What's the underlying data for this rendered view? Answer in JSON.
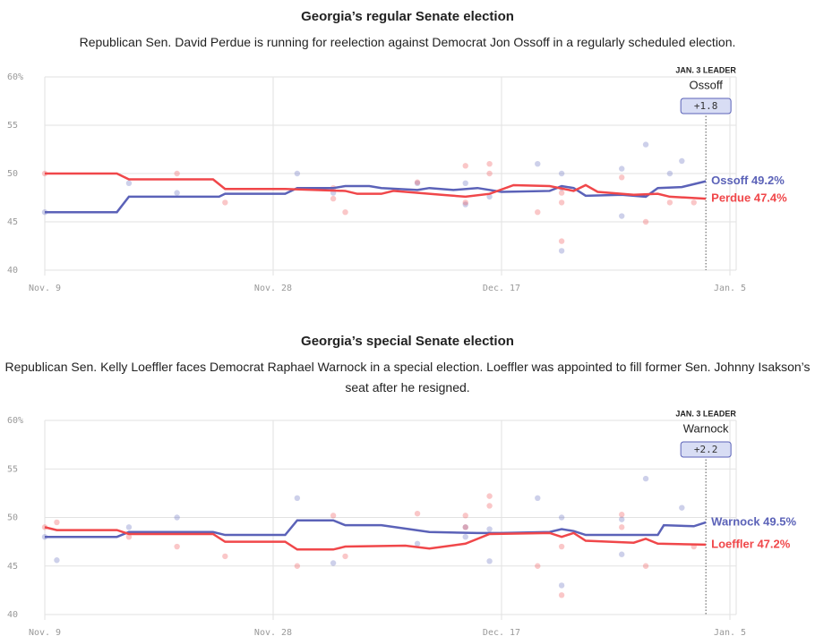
{
  "chart_data": [
    {
      "type": "line",
      "title": "Georgia’s regular Senate election",
      "subtitle": "Republican Sen. David Perdue is running for reelection against Democrat Jon Ossoff in a regularly scheduled election.",
      "xlim": [
        0,
        57
      ],
      "ylim": [
        40,
        60
      ],
      "xticks": [
        {
          "value": 0,
          "label": "Nov. 9"
        },
        {
          "value": 19,
          "label": "Nov. 28"
        },
        {
          "value": 38,
          "label": "Dec. 17"
        },
        {
          "value": 57,
          "label": "Jan. 5"
        }
      ],
      "yticks": [
        40,
        45,
        50,
        55,
        {
          "value": 60,
          "label": "60%"
        }
      ],
      "grid": true,
      "leader": {
        "title": "JAN. 3 LEADER",
        "name": "Ossoff",
        "margin": "+1.8",
        "x": 55
      },
      "series": [
        {
          "label": "Ossoff 49.2%",
          "color": "#5b62b8",
          "x": [
            0,
            6,
            7,
            14.5,
            15,
            20,
            21,
            24,
            25,
            27,
            28,
            31,
            32,
            34,
            36,
            38,
            42,
            43,
            44,
            45,
            48,
            50,
            51,
            53,
            55
          ],
          "values": [
            46,
            46,
            47.6,
            47.6,
            47.9,
            47.9,
            48.5,
            48.5,
            48.7,
            48.7,
            48.5,
            48.3,
            48.5,
            48.3,
            48.5,
            48.1,
            48.2,
            48.7,
            48.5,
            47.7,
            47.8,
            47.6,
            48.5,
            48.6,
            49.2
          ],
          "polls": {
            "x": [
              0,
              7,
              11,
              21,
              24,
              31,
              35,
              35,
              37,
              41,
              43,
              43,
              43,
              48,
              48,
              50,
              52,
              53
            ],
            "values": [
              46,
              49,
              48,
              50,
              48,
              49,
              46.8,
              49,
              47.6,
              51,
              50,
              42,
              48.5,
              50.5,
              45.6,
              53,
              50,
              51.3
            ]
          }
        },
        {
          "label": "Perdue 47.4%",
          "color": "#f0474a",
          "x": [
            0,
            6,
            7,
            14,
            15,
            20,
            25,
            26,
            28,
            29,
            33,
            35,
            37,
            39,
            42,
            44,
            45,
            46,
            49,
            51,
            52,
            55
          ],
          "values": [
            50,
            50,
            49.4,
            49.4,
            48.4,
            48.4,
            48.2,
            47.9,
            47.9,
            48.2,
            47.8,
            47.6,
            47.9,
            48.8,
            48.7,
            48.2,
            48.8,
            48.1,
            47.8,
            47.9,
            47.6,
            47.4
          ],
          "polls": {
            "x": [
              0,
              11,
              15,
              24,
              24,
              25,
              31,
              35,
              35,
              37,
              37,
              41,
              43,
              43,
              43,
              48,
              50,
              52,
              54
            ],
            "values": [
              50,
              50,
              47,
              48.5,
              47.4,
              46,
              49.1,
              50.8,
              47,
              51,
              50,
              46,
              43,
              47,
              48,
              49.6,
              45,
              47,
              47
            ]
          }
        }
      ]
    },
    {
      "type": "line",
      "title": "Georgia’s special Senate election",
      "subtitle": "Republican Sen. Kelly Loeffler faces Democrat Raphael Warnock in a special election. Loeffler was appointed to fill former Sen. Johnny Isakson’s seat after he resigned.",
      "xlim": [
        0,
        57
      ],
      "ylim": [
        40,
        60
      ],
      "xticks": [
        {
          "value": 0,
          "label": "Nov. 9"
        },
        {
          "value": 19,
          "label": "Nov. 28"
        },
        {
          "value": 38,
          "label": "Dec. 17"
        },
        {
          "value": 57,
          "label": "Jan. 5"
        }
      ],
      "yticks": [
        40,
        45,
        50,
        55,
        {
          "value": 60,
          "label": "60%"
        }
      ],
      "grid": true,
      "leader": {
        "title": "JAN. 3 LEADER",
        "name": "Warnock",
        "margin": "+2.2",
        "x": 55
      },
      "series": [
        {
          "label": "Warnock 49.5%",
          "color": "#5b62b8",
          "x": [
            0,
            6,
            7,
            14,
            15,
            20,
            21,
            24,
            25,
            28,
            32,
            36,
            38,
            42,
            43,
            44,
            45,
            50,
            51,
            51.5,
            54,
            55
          ],
          "values": [
            48,
            48,
            48.5,
            48.5,
            48.2,
            48.2,
            49.7,
            49.7,
            49.2,
            49.2,
            48.5,
            48.4,
            48.4,
            48.5,
            48.8,
            48.6,
            48.2,
            48.2,
            48.2,
            49.2,
            49.1,
            49.5
          ],
          "polls": {
            "x": [
              0,
              1,
              7,
              11,
              21,
              24,
              31,
              35,
              35,
              37,
              37,
              41,
              43,
              43,
              48,
              48,
              50,
              53
            ],
            "values": [
              48,
              45.6,
              49,
              50,
              52,
              45.3,
              47.3,
              49,
              48,
              45.5,
              48.8,
              52,
              50,
              43,
              49.8,
              46.2,
              54,
              51
            ]
          }
        },
        {
          "label": "Loeffler 47.2%",
          "color": "#f0474a",
          "x": [
            0,
            1,
            6,
            7,
            14,
            15,
            20,
            21,
            24,
            25,
            30,
            32,
            35,
            37,
            42,
            43,
            44,
            45,
            49,
            50,
            51,
            55
          ],
          "values": [
            49,
            48.7,
            48.7,
            48.3,
            48.3,
            47.5,
            47.5,
            46.7,
            46.7,
            47,
            47.1,
            46.8,
            47.3,
            48.3,
            48.4,
            48,
            48.4,
            47.6,
            47.4,
            47.8,
            47.3,
            47.2
          ],
          "polls": {
            "x": [
              0,
              1,
              7,
              11,
              15,
              21,
              24,
              25,
              31,
              35,
              35,
              37,
              37,
              41,
              43,
              43,
              48,
              48,
              50,
              54
            ],
            "values": [
              49,
              49.5,
              48,
              47,
              46,
              45,
              50.2,
              46,
              50.4,
              50.2,
              49,
              52.2,
              51.2,
              45,
              47,
              42,
              50.3,
              49,
              45,
              47
            ]
          }
        }
      ]
    }
  ]
}
